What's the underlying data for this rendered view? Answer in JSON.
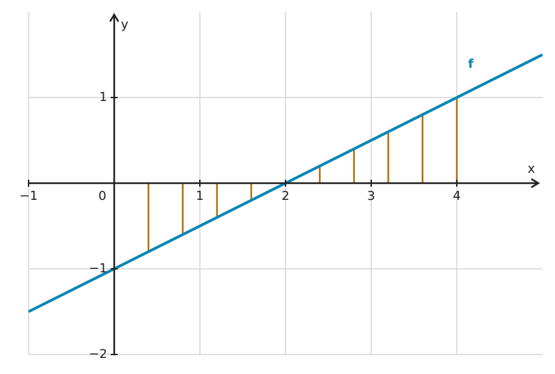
{
  "chart_data": {
    "type": "line",
    "x_label": "x",
    "y_label": "y",
    "xlim": [
      -1,
      5
    ],
    "ylim": [
      -2,
      2
    ],
    "xticks": [
      {
        "value": -1,
        "label": "−1"
      },
      0,
      1,
      2,
      3,
      4
    ],
    "yticks": [
      {
        "value": -2,
        "label": "−2"
      },
      {
        "value": -1,
        "label": "−1"
      },
      1
    ],
    "grid": true,
    "series": [
      {
        "name": "f",
        "type": "line",
        "color": "#0a87b5",
        "x": [
          -1,
          5
        ],
        "values": [
          -1.5,
          1.5
        ]
      },
      {
        "type": "stem",
        "color": "#b5700f",
        "x": [
          0.4,
          0.8,
          1.2,
          1.6,
          2.4,
          2.8,
          3.2,
          3.6,
          4.0
        ],
        "values": [
          -0.8,
          -0.6,
          -0.4,
          -0.2,
          0.2,
          0.4,
          0.6,
          0.8,
          1.0
        ]
      }
    ]
  }
}
